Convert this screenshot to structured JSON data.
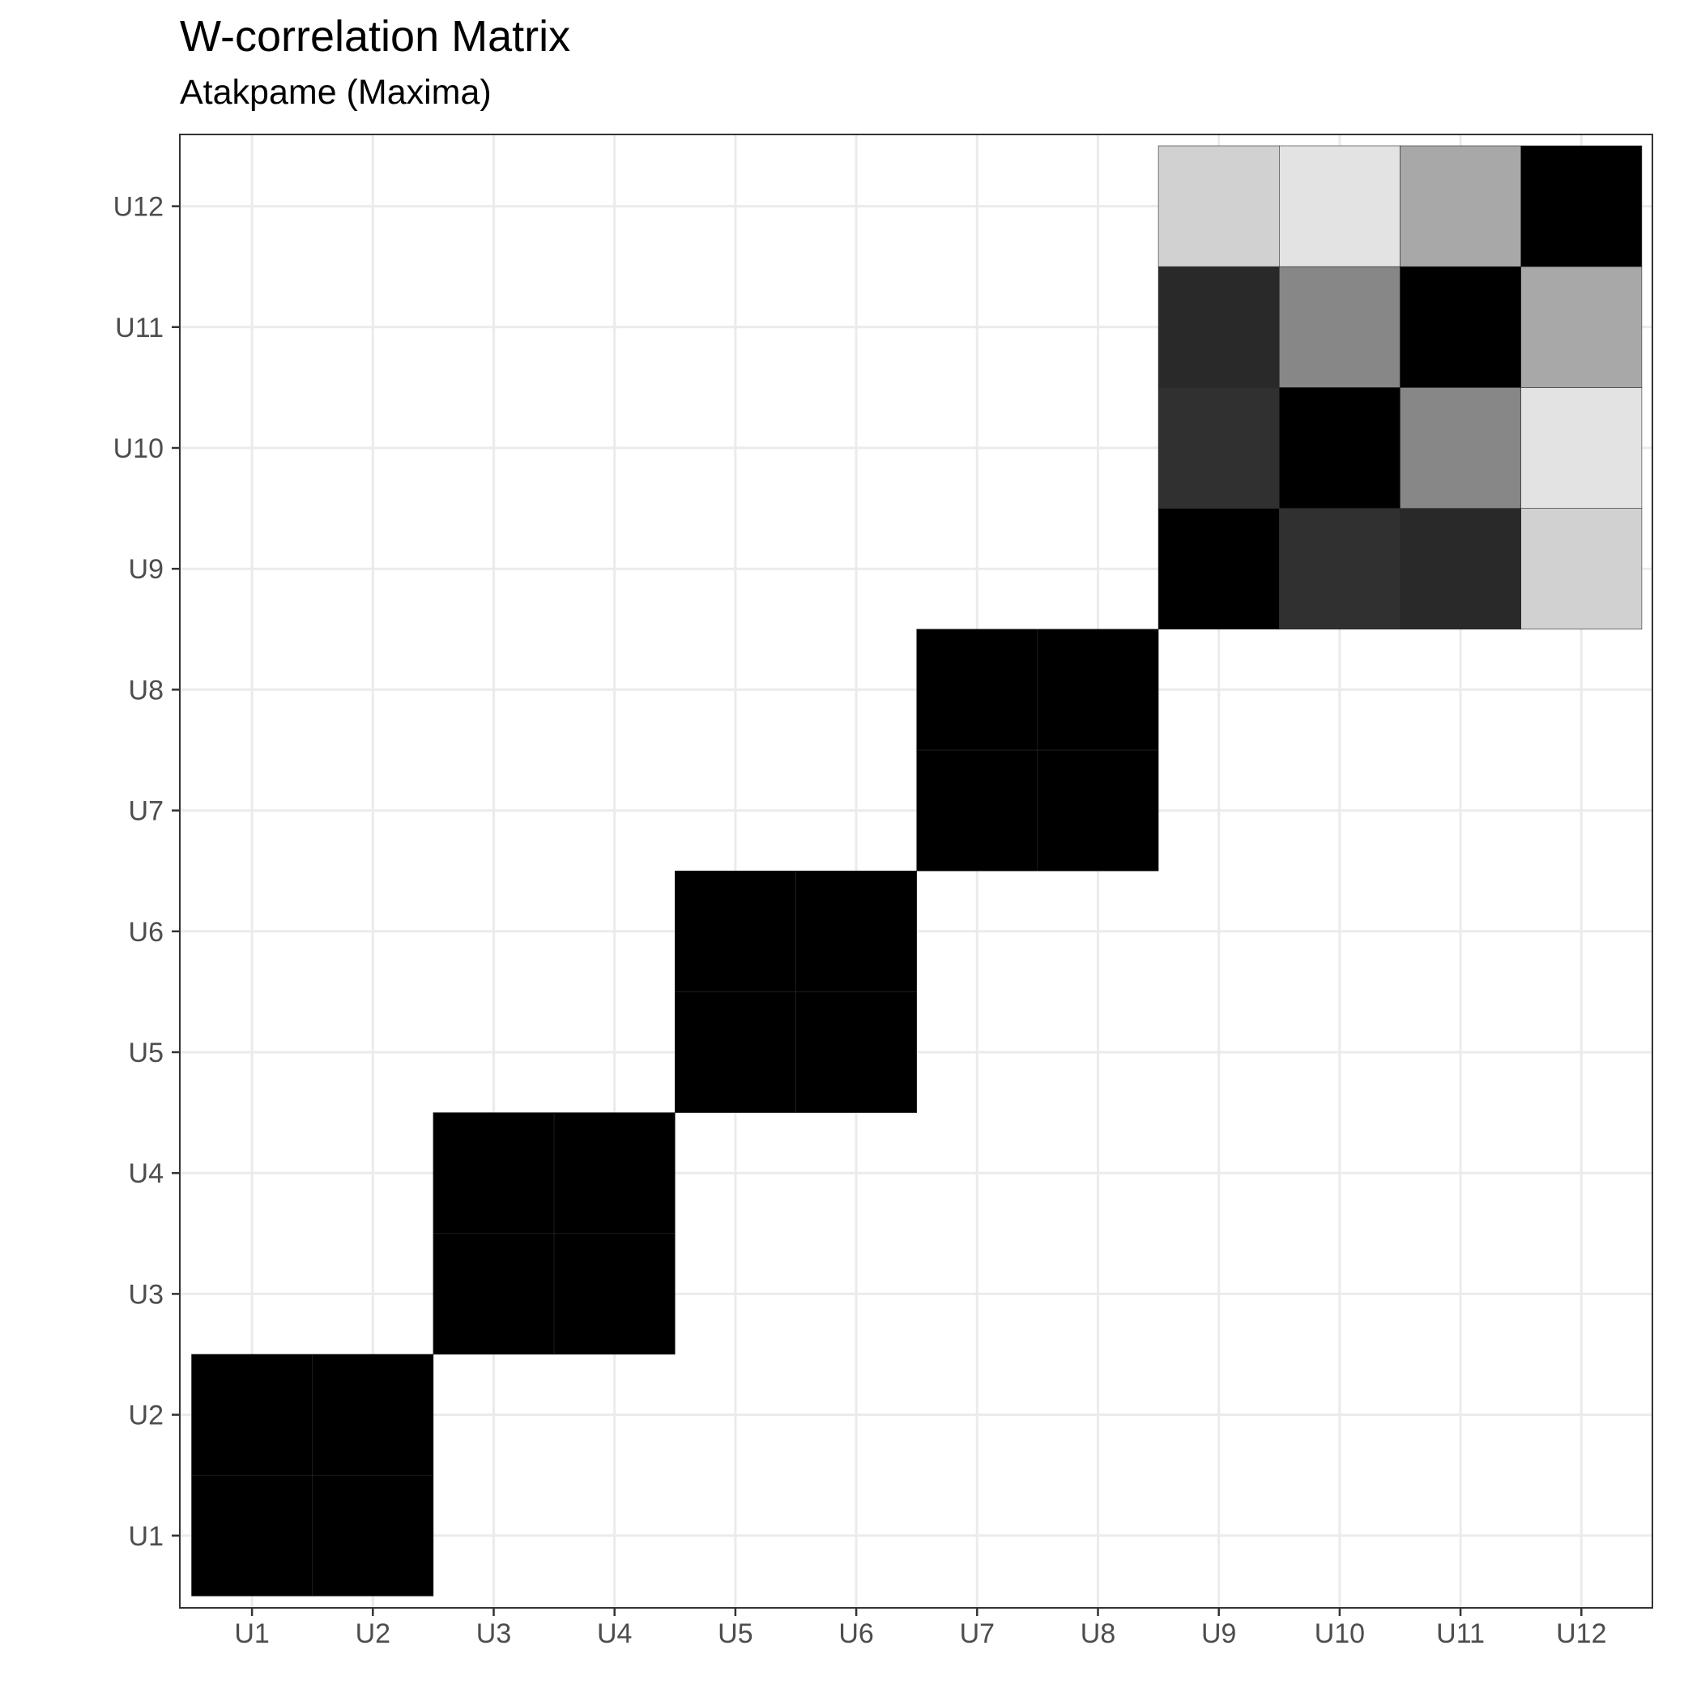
{
  "chart_data": {
    "type": "heatmap",
    "title": "W-correlation Matrix",
    "subtitle": "Atakpame (Maxima)",
    "xlabel": "",
    "ylabel": "",
    "x_categories": [
      "U1",
      "U2",
      "U3",
      "U4",
      "U5",
      "U6",
      "U7",
      "U8",
      "U9",
      "U10",
      "U11",
      "U12"
    ],
    "y_categories": [
      "U1",
      "U2",
      "U3",
      "U4",
      "U5",
      "U6",
      "U7",
      "U8",
      "U9",
      "U10",
      "U11",
      "U12"
    ],
    "color_scale": {
      "low": "#ffffff",
      "high": "#000000",
      "range": [
        0,
        1
      ]
    },
    "grid": true,
    "legend": "none",
    "values": [
      [
        1,
        1,
        0,
        0,
        0,
        0,
        0,
        0,
        0,
        0,
        0,
        0
      ],
      [
        1,
        1,
        0,
        0,
        0,
        0,
        0,
        0,
        0,
        0,
        0,
        0
      ],
      [
        0,
        0,
        1,
        1,
        0,
        0,
        0,
        0,
        0,
        0,
        0,
        0
      ],
      [
        0,
        0,
        1,
        1,
        0,
        0,
        0,
        0,
        0,
        0,
        0,
        0
      ],
      [
        0,
        0,
        0,
        0,
        1,
        1,
        0,
        0,
        0,
        0,
        0,
        0
      ],
      [
        0,
        0,
        0,
        0,
        1,
        1,
        0,
        0,
        0,
        0,
        0,
        0
      ],
      [
        0,
        0,
        0,
        0,
        0,
        0,
        1,
        1,
        0,
        0,
        0,
        0
      ],
      [
        0,
        0,
        0,
        0,
        0,
        0,
        1,
        1,
        0,
        0,
        0,
        0
      ],
      [
        0,
        0,
        0,
        0,
        0,
        0,
        0,
        0,
        1,
        0.81,
        0.84,
        0.18
      ],
      [
        0,
        0,
        0,
        0,
        0,
        0,
        0,
        0,
        0.81,
        1,
        0.47,
        0.11
      ],
      [
        0,
        0,
        0,
        0,
        0,
        0,
        0,
        0,
        0.84,
        0.47,
        1,
        0.34
      ],
      [
        0,
        0,
        0,
        0,
        0,
        0,
        0,
        0,
        0.18,
        0.11,
        0.34,
        1
      ]
    ]
  }
}
